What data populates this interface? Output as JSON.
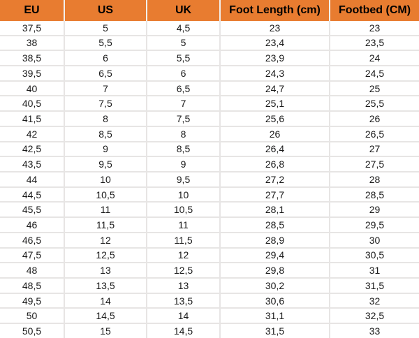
{
  "chart_data": {
    "type": "table",
    "columns": [
      "EU",
      "US",
      "UK",
      "Foot Length (cm)",
      "Footbed (CM)"
    ],
    "rows": [
      [
        "37,5",
        "5",
        "4,5",
        "23",
        "23"
      ],
      [
        "38",
        "5,5",
        "5",
        "23,4",
        "23,5"
      ],
      [
        "38,5",
        "6",
        "5,5",
        "23,9",
        "24"
      ],
      [
        "39,5",
        "6,5",
        "6",
        "24,3",
        "24,5"
      ],
      [
        "40",
        "7",
        "6,5",
        "24,7",
        "25"
      ],
      [
        "40,5",
        "7,5",
        "7",
        "25,1",
        "25,5"
      ],
      [
        "41,5",
        "8",
        "7,5",
        "25,6",
        "26"
      ],
      [
        "42",
        "8,5",
        "8",
        "26",
        "26,5"
      ],
      [
        "42,5",
        "9",
        "8,5",
        "26,4",
        "27"
      ],
      [
        "43,5",
        "9,5",
        "9",
        "26,8",
        "27,5"
      ],
      [
        "44",
        "10",
        "9,5",
        "27,2",
        "28"
      ],
      [
        "44,5",
        "10,5",
        "10",
        "27,7",
        "28,5"
      ],
      [
        "45,5",
        "11",
        "10,5",
        "28,1",
        "29"
      ],
      [
        "46",
        "11,5",
        "11",
        "28,5",
        "29,5"
      ],
      [
        "46,5",
        "12",
        "11,5",
        "28,9",
        "30"
      ],
      [
        "47,5",
        "12,5",
        "12",
        "29,4",
        "30,5"
      ],
      [
        "48",
        "13",
        "12,5",
        "29,8",
        "31"
      ],
      [
        "48,5",
        "13,5",
        "13",
        "30,2",
        "31,5"
      ],
      [
        "49,5",
        "14",
        "13,5",
        "30,6",
        "32"
      ],
      [
        "50",
        "14,5",
        "14",
        "31,1",
        "32,5"
      ],
      [
        "50,5",
        "15",
        "14,5",
        "31,5",
        "33"
      ]
    ]
  },
  "colors": {
    "header_bg": "#E87C30",
    "header_text": "#000000",
    "header_divider": "#F2F0EE",
    "grid": "#E7E5E4",
    "cell_bg": "#FFFFFF",
    "cell_text": "#1A1A1A"
  }
}
